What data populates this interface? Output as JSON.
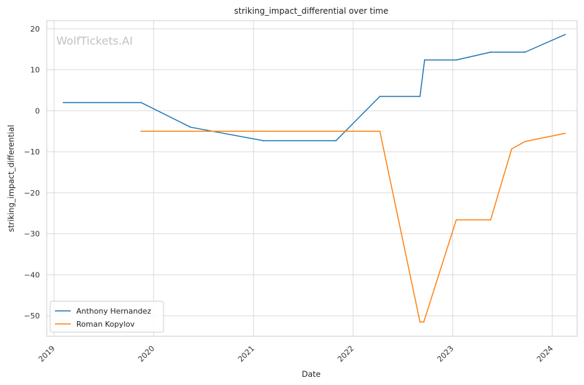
{
  "chart_data": {
    "type": "line",
    "title": "striking_impact_differential over time",
    "xlabel": "Date",
    "ylabel": "striking_impact_differential",
    "watermark": "WolfTickets.AI",
    "x_ticks": [
      "2019",
      "2020",
      "2021",
      "2022",
      "2023",
      "2024"
    ],
    "x_range": [
      "2018-12-05",
      "2024-04-01"
    ],
    "ylim": [
      -55,
      22
    ],
    "y_ticks": [
      20,
      10,
      0,
      -10,
      -20,
      -30,
      -40,
      -50
    ],
    "y_tick_labels": [
      "20",
      "10",
      "0",
      "−10",
      "−20",
      "−30",
      "−40",
      "−50"
    ],
    "grid": true,
    "legend_position": "lower-left",
    "series": [
      {
        "name": "Anthony Hernandez",
        "color": "#1f77b4",
        "points": [
          {
            "x": "2019-02-04",
            "y": 2.0
          },
          {
            "x": "2019-11-16",
            "y": 2.0
          },
          {
            "x": "2020-05-15",
            "y": -4.0
          },
          {
            "x": "2021-02-06",
            "y": -7.3
          },
          {
            "x": "2021-10-30",
            "y": -7.3
          },
          {
            "x": "2022-04-09",
            "y": 3.5
          },
          {
            "x": "2022-09-03",
            "y": 3.5
          },
          {
            "x": "2022-09-20",
            "y": 12.4
          },
          {
            "x": "2023-01-14",
            "y": 12.4
          },
          {
            "x": "2023-05-20",
            "y": 14.3
          },
          {
            "x": "2023-09-23",
            "y": 14.3
          },
          {
            "x": "2024-02-17",
            "y": 18.6
          }
        ]
      },
      {
        "name": "Roman Kopylov",
        "color": "#ff7f0e",
        "points": [
          {
            "x": "2019-11-16",
            "y": -5.0
          },
          {
            "x": "2022-04-09",
            "y": -5.0
          },
          {
            "x": "2022-09-03",
            "y": -51.5
          },
          {
            "x": "2022-09-17",
            "y": -51.5
          },
          {
            "x": "2023-01-14",
            "y": -26.6
          },
          {
            "x": "2023-05-20",
            "y": -26.6
          },
          {
            "x": "2023-08-05",
            "y": -9.3
          },
          {
            "x": "2023-09-23",
            "y": -7.5
          },
          {
            "x": "2024-02-17",
            "y": -5.5
          }
        ]
      }
    ]
  }
}
